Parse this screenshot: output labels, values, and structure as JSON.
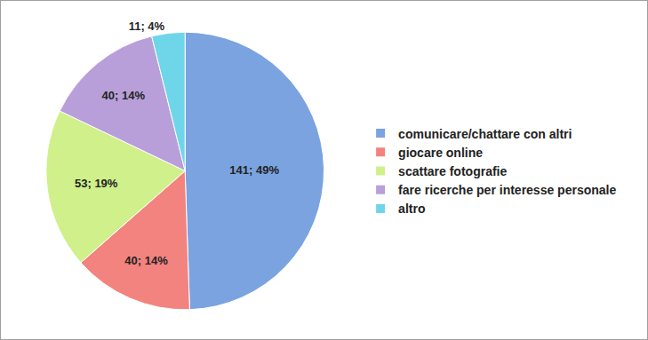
{
  "chart_data": {
    "type": "pie",
    "categories": [
      "comunicare/chattare con altri",
      "giocare online",
      "scattare fotografie",
      "fare ricerche per interesse personale",
      "altro"
    ],
    "values": [
      141,
      40,
      53,
      40,
      11
    ],
    "value_labels": [
      "141; 49%",
      "40; 14%",
      "53; 19%",
      "40; 14%",
      "11; 4%"
    ],
    "colors": [
      "#7aa3e0",
      "#f2837f",
      "#cff08a",
      "#b89fd9",
      "#6fd6ea"
    ],
    "data_labels": true,
    "legend": "right"
  }
}
